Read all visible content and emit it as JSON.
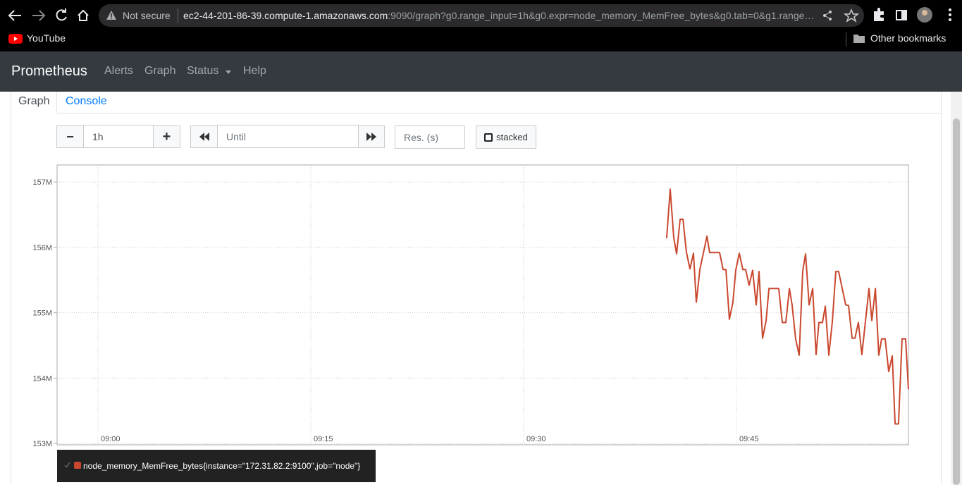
{
  "browser": {
    "security": "Not secure",
    "url_host": "ec2-44-201-86-39.compute-1.amazonaws.com",
    "url_path": ":9090/graph?g0.range_input=1h&g0.expr=node_memory_MemFree_bytes&g0.tab=0&g1.range…",
    "bookmark": "YouTube",
    "other_bookmarks": "Other bookmarks"
  },
  "navbar": {
    "brand": "Prometheus",
    "links": [
      "Alerts",
      "Graph",
      "Status",
      "Help"
    ]
  },
  "tabs": [
    "Graph",
    "Console"
  ],
  "controls": {
    "range_minus": "−",
    "range": "1h",
    "range_plus": "+",
    "until": "Until",
    "resolution": "Res. (s)",
    "stacked": "stacked"
  },
  "chart_data": {
    "type": "line",
    "x": [
      580.08,
      580.33,
      580.58,
      580.78,
      581.03,
      581.23,
      581.47,
      581.72,
      581.97,
      582.17,
      582.42,
      582.92,
      583.11,
      583.81,
      584.06,
      584.26,
      584.5,
      584.75,
      584.95,
      585.2,
      585.45,
      585.65,
      585.89,
      586.14,
      586.39,
      586.59,
      586.84,
      587.09,
      587.29,
      587.98,
      588.23,
      588.48,
      588.73,
      588.92,
      589.17,
      589.42,
      589.67,
      589.87,
      590.12,
      590.37,
      590.61,
      590.81,
      591.06,
      591.26,
      591.51,
      591.76,
      592.0,
      592.2,
      592.7,
      592.9,
      593.15,
      593.35,
      593.59,
      593.84,
      594.09,
      594.34,
      594.54,
      594.79,
      595.03,
      595.23,
      595.48,
      595.73,
      595.98,
      596.18,
      596.42,
      596.67,
      596.92,
      597.12
    ],
    "series": [
      {
        "name": "node_memory_MemFree_bytes{instance=\"172.31.82.2:9100\",job=\"node\"}",
        "color": "#c9482f",
        "values": [
          156140000,
          156890000,
          156150000,
          155900000,
          156430000,
          156430000,
          155930000,
          155670000,
          155910000,
          155160000,
          155660000,
          156170000,
          155920000,
          155920000,
          155660000,
          155660000,
          154900000,
          155160000,
          155650000,
          155910000,
          155660000,
          155660000,
          155420000,
          155650000,
          155120000,
          155630000,
          154610000,
          154880000,
          155370000,
          155370000,
          154850000,
          154850000,
          155370000,
          155120000,
          154600000,
          154350000,
          155640000,
          155900000,
          155120000,
          155370000,
          154360000,
          154850000,
          154850000,
          155100000,
          154350000,
          154870000,
          155630000,
          155630000,
          155120000,
          155110000,
          154610000,
          154610000,
          154850000,
          154360000,
          154870000,
          155370000,
          154880000,
          155370000,
          154350000,
          154600000,
          154600000,
          154100000,
          154340000,
          153300000,
          153300000,
          154600000,
          154600000,
          153830000
        ]
      }
    ],
    "xlim": [
      537.12,
      597.12
    ],
    "xticks": [
      {
        "value": 540,
        "label": "09:00"
      },
      {
        "value": 555,
        "label": "09:15"
      },
      {
        "value": 570,
        "label": "09:30"
      },
      {
        "value": 585,
        "label": "09:45"
      }
    ],
    "ylim": [
      152980000,
      157260000
    ],
    "yticks": [
      {
        "value": 153000000,
        "label": "153M"
      },
      {
        "value": 154000000,
        "label": "154M"
      },
      {
        "value": 155000000,
        "label": "155M"
      },
      {
        "value": 156000000,
        "label": "156M"
      },
      {
        "value": 157000000,
        "label": "157M"
      }
    ],
    "grid": true
  }
}
